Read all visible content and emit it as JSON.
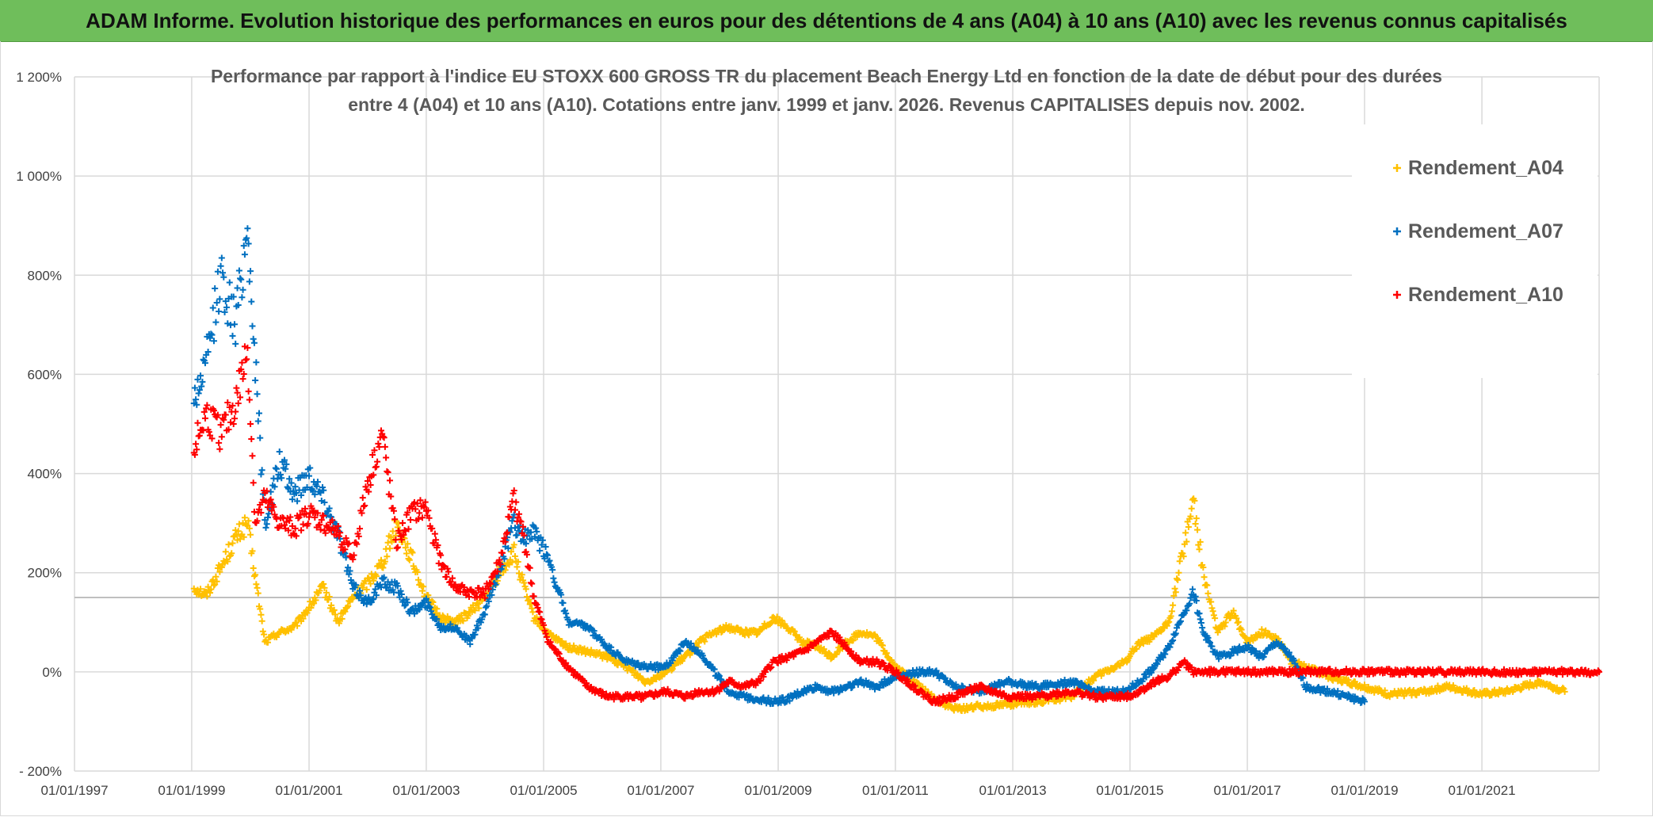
{
  "banner": {
    "title": "ADAM Informe. Evolution historique des performances en euros pour des détentions de 4 ans (A04) à 10 ans (A10) avec les revenus connus capitalisés"
  },
  "chart_data": {
    "type": "scatter",
    "title_lines": [
      "Performance par rapport à l'indice EU STOXX 600 GROSS TR  du placement Beach Energy Ltd en fonction de la date de début pour des durées",
      "entre 4 (A04) et 10 ans (A10). Cotations entre janv. 1999 et janv. 2026. Revenus CAPITALISES depuis nov. 2002."
    ],
    "xlabel": "",
    "ylabel": "",
    "x_ticks": [
      "01/01/1997",
      "01/01/1999",
      "01/01/2001",
      "01/01/2003",
      "01/01/2005",
      "01/01/2007",
      "01/01/2009",
      "01/01/2011",
      "01/01/2013",
      "01/01/2015",
      "01/01/2017",
      "01/01/2019",
      "01/01/2021"
    ],
    "y_ticks": [
      "- 200%",
      "0%",
      "200%",
      "400%",
      "600%",
      "800%",
      "1 000%",
      "1 200%"
    ],
    "ylim": [
      -200,
      1200
    ],
    "xlim": [
      "1997-01-01",
      "2023-01-01"
    ],
    "reference_line_y": 150,
    "marker": "+",
    "legend_position": "top-right",
    "colors": {
      "A04": "#ffc000",
      "A07": "#0070c0",
      "A10": "#ff0000",
      "grid": "#d9d9d9"
    },
    "series": [
      {
        "name": "Rendement_A04",
        "color": "#ffc000",
        "points": [
          [
            "1999-01-15",
            170
          ],
          [
            "1999-04-01",
            155
          ],
          [
            "1999-07-01",
            210
          ],
          [
            "1999-10-01",
            270
          ],
          [
            "1999-12-15",
            300
          ],
          [
            "2000-02-01",
            190
          ],
          [
            "2000-04-01",
            60
          ],
          [
            "2000-07-01",
            80
          ],
          [
            "2000-10-01",
            90
          ],
          [
            "2001-01-01",
            130
          ],
          [
            "2001-04-01",
            170
          ],
          [
            "2001-07-01",
            100
          ],
          [
            "2001-10-01",
            150
          ],
          [
            "2002-01-01",
            180
          ],
          [
            "2002-04-01",
            220
          ],
          [
            "2002-07-01",
            300
          ],
          [
            "2002-10-01",
            230
          ],
          [
            "2003-01-01",
            150
          ],
          [
            "2003-04-01",
            110
          ],
          [
            "2003-07-01",
            100
          ],
          [
            "2003-10-01",
            120
          ],
          [
            "2004-01-01",
            150
          ],
          [
            "2004-04-01",
            200
          ],
          [
            "2004-07-01",
            240
          ],
          [
            "2004-09-01",
            170
          ],
          [
            "2004-11-01",
            110
          ],
          [
            "2005-02-01",
            75
          ],
          [
            "2005-06-01",
            50
          ],
          [
            "2005-10-01",
            40
          ],
          [
            "2006-02-01",
            30
          ],
          [
            "2006-06-01",
            10
          ],
          [
            "2006-10-01",
            -20
          ],
          [
            "2007-02-01",
            0
          ],
          [
            "2007-06-01",
            30
          ],
          [
            "2007-09-01",
            60
          ],
          [
            "2007-12-01",
            80
          ],
          [
            "2008-03-01",
            90
          ],
          [
            "2008-06-01",
            80
          ],
          [
            "2008-09-01",
            80
          ],
          [
            "2008-12-01",
            110
          ],
          [
            "2009-03-01",
            90
          ],
          [
            "2009-06-01",
            60
          ],
          [
            "2009-09-01",
            50
          ],
          [
            "2009-12-01",
            30
          ],
          [
            "2010-03-01",
            60
          ],
          [
            "2010-06-01",
            80
          ],
          [
            "2010-09-01",
            70
          ],
          [
            "2011-01-01",
            10
          ],
          [
            "2011-06-01",
            -30
          ],
          [
            "2011-09-01",
            -55
          ],
          [
            "2012-01-01",
            -75
          ],
          [
            "2012-06-01",
            -70
          ],
          [
            "2012-12-01",
            -65
          ],
          [
            "2013-06-01",
            -60
          ],
          [
            "2014-01-01",
            -50
          ],
          [
            "2014-06-01",
            -10
          ],
          [
            "2014-12-01",
            20
          ],
          [
            "2015-03-01",
            60
          ],
          [
            "2015-06-01",
            70
          ],
          [
            "2015-09-01",
            100
          ],
          [
            "2015-12-01",
            250
          ],
          [
            "2016-02-01",
            350
          ],
          [
            "2016-04-01",
            200
          ],
          [
            "2016-07-01",
            80
          ],
          [
            "2016-10-01",
            120
          ],
          [
            "2017-01-01",
            60
          ],
          [
            "2017-04-01",
            80
          ],
          [
            "2017-07-01",
            70
          ],
          [
            "2017-10-01",
            20
          ],
          [
            "2018-01-01",
            10
          ],
          [
            "2018-06-01",
            -10
          ],
          [
            "2019-01-01",
            -30
          ],
          [
            "2019-06-01",
            -45
          ],
          [
            "2020-01-01",
            -40
          ],
          [
            "2020-06-01",
            -30
          ],
          [
            "2021-01-01",
            -45
          ],
          [
            "2021-06-01",
            -40
          ],
          [
            "2022-01-01",
            -20
          ],
          [
            "2022-06-01",
            -40
          ]
        ]
      },
      {
        "name": "Rendement_A07",
        "color": "#0070c0",
        "points": [
          [
            "1999-01-15",
            550
          ],
          [
            "1999-04-01",
            620
          ],
          [
            "1999-07-01",
            800
          ],
          [
            "1999-10-01",
            700
          ],
          [
            "1999-12-15",
            900
          ],
          [
            "2000-02-01",
            620
          ],
          [
            "2000-04-01",
            300
          ],
          [
            "2000-07-01",
            420
          ],
          [
            "2000-10-01",
            360
          ],
          [
            "2001-01-01",
            400
          ],
          [
            "2001-04-01",
            350
          ],
          [
            "2001-07-01",
            280
          ],
          [
            "2001-10-01",
            170
          ],
          [
            "2002-01-01",
            140
          ],
          [
            "2002-04-01",
            180
          ],
          [
            "2002-07-01",
            170
          ],
          [
            "2002-10-01",
            120
          ],
          [
            "2003-01-01",
            140
          ],
          [
            "2003-04-01",
            90
          ],
          [
            "2003-07-01",
            90
          ],
          [
            "2003-10-01",
            60
          ],
          [
            "2004-01-01",
            120
          ],
          [
            "2004-04-01",
            210
          ],
          [
            "2004-07-01",
            300
          ],
          [
            "2004-09-01",
            270
          ],
          [
            "2004-11-01",
            280
          ],
          [
            "2005-02-01",
            230
          ],
          [
            "2005-06-01",
            100
          ],
          [
            "2005-10-01",
            90
          ],
          [
            "2006-02-01",
            50
          ],
          [
            "2006-06-01",
            20
          ],
          [
            "2006-10-01",
            10
          ],
          [
            "2007-02-01",
            10
          ],
          [
            "2007-06-01",
            60
          ],
          [
            "2007-09-01",
            40
          ],
          [
            "2007-12-01",
            0
          ],
          [
            "2008-03-01",
            -40
          ],
          [
            "2008-06-01",
            -50
          ],
          [
            "2008-09-01",
            -55
          ],
          [
            "2008-12-01",
            -60
          ],
          [
            "2009-03-01",
            -55
          ],
          [
            "2009-06-01",
            -40
          ],
          [
            "2009-09-01",
            -30
          ],
          [
            "2009-12-01",
            -40
          ],
          [
            "2010-03-01",
            -30
          ],
          [
            "2010-06-01",
            -20
          ],
          [
            "2010-09-01",
            -30
          ],
          [
            "2011-01-01",
            -10
          ],
          [
            "2011-06-01",
            0
          ],
          [
            "2011-09-01",
            0
          ],
          [
            "2012-01-01",
            -30
          ],
          [
            "2012-06-01",
            -40
          ],
          [
            "2012-12-01",
            -20
          ],
          [
            "2013-06-01",
            -30
          ],
          [
            "2014-01-01",
            -20
          ],
          [
            "2014-06-01",
            -40
          ],
          [
            "2014-12-01",
            -40
          ],
          [
            "2015-03-01",
            -20
          ],
          [
            "2015-06-01",
            10
          ],
          [
            "2015-09-01",
            50
          ],
          [
            "2015-12-01",
            120
          ],
          [
            "2016-02-01",
            160
          ],
          [
            "2016-04-01",
            80
          ],
          [
            "2016-07-01",
            30
          ],
          [
            "2016-10-01",
            40
          ],
          [
            "2017-01-01",
            50
          ],
          [
            "2017-04-01",
            30
          ],
          [
            "2017-07-01",
            60
          ],
          [
            "2017-10-01",
            30
          ],
          [
            "2018-01-01",
            -30
          ],
          [
            "2018-06-01",
            -40
          ],
          [
            "2019-01-01",
            -60
          ]
        ]
      },
      {
        "name": "Rendement_A10",
        "color": "#ff0000",
        "points": [
          [
            "1999-01-15",
            450
          ],
          [
            "1999-04-01",
            520
          ],
          [
            "1999-07-01",
            480
          ],
          [
            "1999-10-01",
            540
          ],
          [
            "1999-12-15",
            650
          ],
          [
            "2000-02-01",
            300
          ],
          [
            "2000-04-01",
            350
          ],
          [
            "2000-07-01",
            300
          ],
          [
            "2000-10-01",
            290
          ],
          [
            "2001-01-01",
            320
          ],
          [
            "2001-04-01",
            300
          ],
          [
            "2001-07-01",
            280
          ],
          [
            "2001-10-01",
            230
          ],
          [
            "2002-01-01",
            380
          ],
          [
            "2002-04-01",
            480
          ],
          [
            "2002-07-01",
            260
          ],
          [
            "2002-10-01",
            320
          ],
          [
            "2003-01-01",
            330
          ],
          [
            "2003-04-01",
            220
          ],
          [
            "2003-07-01",
            170
          ],
          [
            "2003-10-01",
            160
          ],
          [
            "2004-01-01",
            160
          ],
          [
            "2004-04-01",
            220
          ],
          [
            "2004-07-01",
            350
          ],
          [
            "2004-09-01",
            270
          ],
          [
            "2004-11-01",
            150
          ],
          [
            "2005-02-01",
            60
          ],
          [
            "2005-06-01",
            10
          ],
          [
            "2005-10-01",
            -30
          ],
          [
            "2006-02-01",
            -50
          ],
          [
            "2006-06-01",
            -50
          ],
          [
            "2006-10-01",
            -50
          ],
          [
            "2007-02-01",
            -40
          ],
          [
            "2007-06-01",
            -50
          ],
          [
            "2007-09-01",
            -40
          ],
          [
            "2007-12-01",
            -40
          ],
          [
            "2008-03-01",
            -20
          ],
          [
            "2008-06-01",
            -30
          ],
          [
            "2008-09-01",
            -20
          ],
          [
            "2008-12-01",
            20
          ],
          [
            "2009-03-01",
            30
          ],
          [
            "2009-06-01",
            40
          ],
          [
            "2009-09-01",
            60
          ],
          [
            "2009-12-01",
            80
          ],
          [
            "2010-03-01",
            50
          ],
          [
            "2010-06-01",
            20
          ],
          [
            "2010-09-01",
            20
          ],
          [
            "2011-01-01",
            0
          ],
          [
            "2011-06-01",
            -40
          ],
          [
            "2011-09-01",
            -60
          ],
          [
            "2012-01-01",
            -50
          ],
          [
            "2012-06-01",
            -30
          ],
          [
            "2012-12-01",
            -50
          ],
          [
            "2013-06-01",
            -50
          ],
          [
            "2014-01-01",
            -40
          ],
          [
            "2014-06-01",
            -50
          ],
          [
            "2014-12-01",
            -50
          ],
          [
            "2015-03-01",
            -40
          ],
          [
            "2015-06-01",
            -20
          ],
          [
            "2015-09-01",
            -10
          ],
          [
            "2015-12-01",
            20
          ],
          [
            "2016-02-01",
            0
          ],
          [
            "2016-06-01",
            0
          ],
          [
            "2017-01-01",
            0
          ],
          [
            "2018-01-01",
            0
          ],
          [
            "2019-01-01",
            0
          ],
          [
            "2020-01-01",
            0
          ],
          [
            "2021-01-01",
            0
          ],
          [
            "2022-01-01",
            0
          ],
          [
            "2023-01-01",
            0
          ]
        ]
      }
    ]
  }
}
